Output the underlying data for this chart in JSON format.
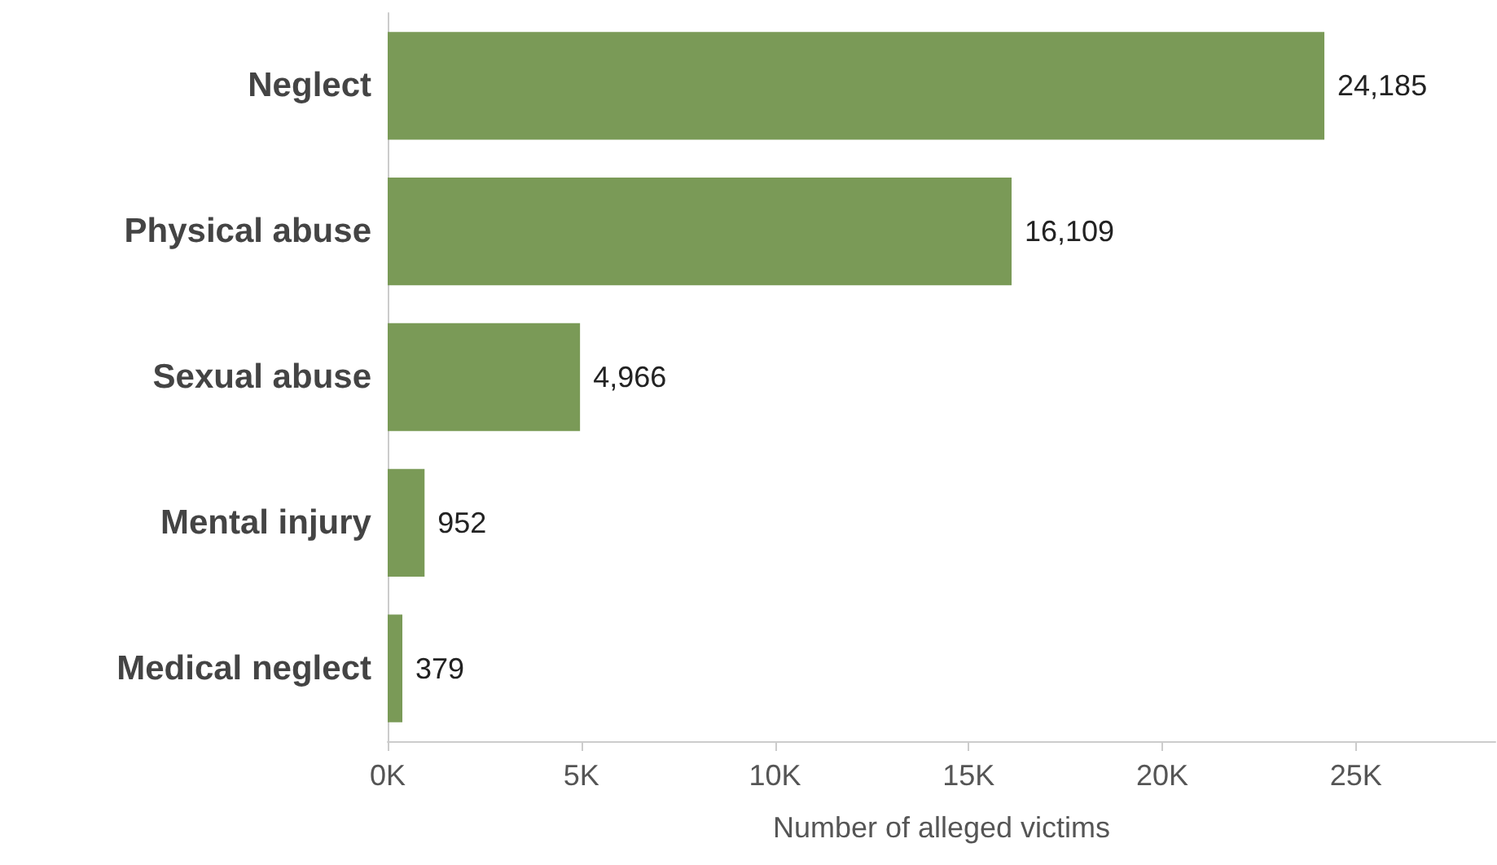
{
  "chart_data": {
    "type": "bar",
    "orientation": "horizontal",
    "xlabel": "Number of alleged victims",
    "categories": [
      "Neglect",
      "Physical abuse",
      "Sexual abuse",
      "Mental injury",
      "Medical neglect"
    ],
    "values": [
      24185,
      16109,
      4966,
      952,
      379
    ],
    "color": "#7a9a57",
    "value_labels": [
      "24,185",
      "16,109",
      "4,966",
      "952",
      "379"
    ],
    "xlim": [
      0,
      28600
    ],
    "xticks": [
      {
        "value": 0,
        "label": "0K"
      },
      {
        "value": 5000,
        "label": "5K"
      },
      {
        "value": 10000,
        "label": "10K"
      },
      {
        "value": 15000,
        "label": "15K"
      },
      {
        "value": 20000,
        "label": "20K"
      },
      {
        "value": 25000,
        "label": "25K"
      }
    ],
    "grid": false
  }
}
